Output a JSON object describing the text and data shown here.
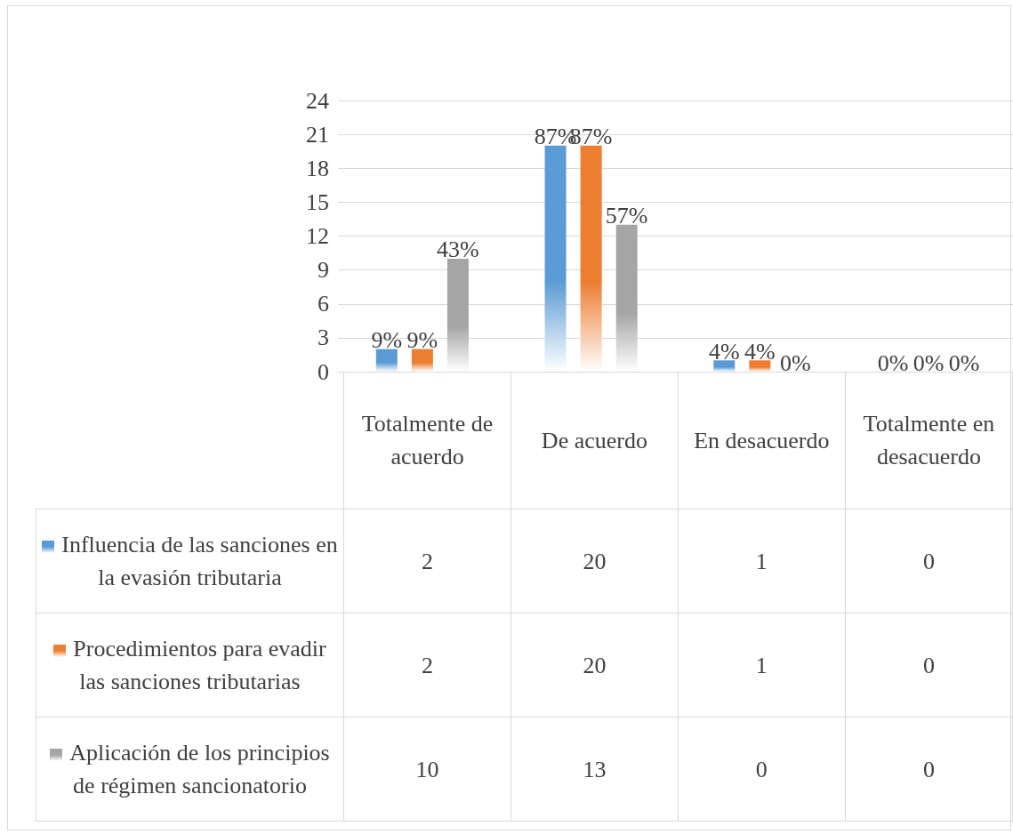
{
  "chart_data": {
    "type": "bar",
    "categories": [
      "Totalmente de acuerdo",
      "De acuerdo",
      "En desacuerdo",
      "Totalmente en desacuerdo"
    ],
    "series": [
      {
        "name": "Influencia de las sanciones en la evasión tributaria",
        "color": "#5b9bd5",
        "values": [
          2,
          20,
          1,
          0
        ]
      },
      {
        "name": "Procedimientos para evadir las sanciones tributarias",
        "color": "#ed7d31",
        "values": [
          2,
          20,
          1,
          0
        ]
      },
      {
        "name": "Aplicación de los principios de régimen sancionatorio",
        "color": "#a5a5a5",
        "values": [
          10,
          13,
          0,
          0
        ]
      }
    ],
    "annotations": [
      "9%",
      "9%",
      "43%",
      "87%",
      "87%",
      "57%",
      "4%",
      "4%",
      "0%",
      "0%",
      "0%",
      "0%"
    ],
    "ylim": [
      0,
      24
    ],
    "yticks": [
      0,
      3,
      6,
      9,
      12,
      15,
      18,
      21,
      24
    ],
    "grid": "y",
    "legend": "bottom left",
    "data_labels": true
  }
}
